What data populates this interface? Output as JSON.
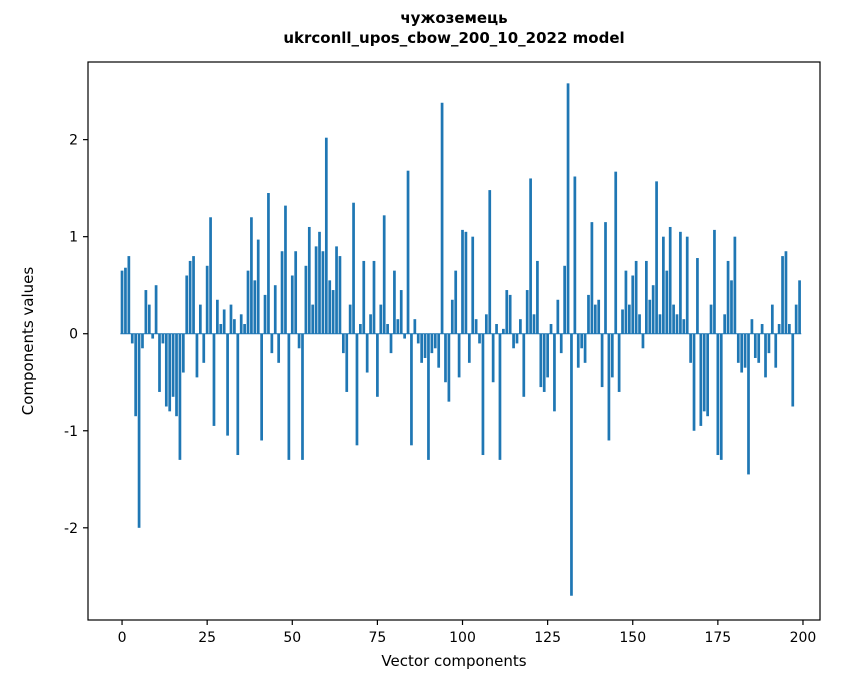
{
  "chart_data": {
    "type": "bar",
    "title": "чужоземець",
    "subtitle": "ukrconll_upos_cbow_200_10_2022 model",
    "xlabel": "Vector components",
    "ylabel": "Components values",
    "bar_color": "#1f77b4",
    "axis_color": "#000000",
    "xlim": [
      -10,
      205
    ],
    "ylim": [
      -2.95,
      2.8
    ],
    "xticks": [
      0,
      25,
      50,
      75,
      100,
      125,
      150,
      175,
      200
    ],
    "yticks": [
      -2,
      -1,
      0,
      1,
      2
    ],
    "bar_width": 0.8,
    "values": [
      0.65,
      0.68,
      0.8,
      -0.1,
      -0.85,
      -2.0,
      -0.15,
      0.45,
      0.3,
      -0.05,
      0.5,
      -0.6,
      -0.1,
      -0.75,
      -0.8,
      -0.65,
      -0.85,
      -1.3,
      -0.4,
      0.6,
      0.75,
      0.8,
      -0.45,
      0.3,
      -0.3,
      0.7,
      1.2,
      -0.95,
      0.35,
      0.1,
      0.25,
      -1.05,
      0.3,
      0.15,
      -1.25,
      0.2,
      0.1,
      0.65,
      1.2,
      0.55,
      0.97,
      -1.1,
      0.4,
      1.45,
      -0.2,
      0.5,
      -0.3,
      0.85,
      1.32,
      -1.3,
      0.6,
      0.85,
      -0.15,
      -1.3,
      0.7,
      1.1,
      0.3,
      0.9,
      1.05,
      0.85,
      2.02,
      0.55,
      0.45,
      0.9,
      0.8,
      -0.2,
      -0.6,
      0.3,
      1.35,
      -1.15,
      0.1,
      0.75,
      -0.4,
      0.2,
      0.75,
      -0.65,
      0.3,
      1.22,
      0.1,
      -0.2,
      0.65,
      0.15,
      0.45,
      -0.05,
      1.68,
      -1.15,
      0.15,
      -0.1,
      -0.3,
      -0.25,
      -1.3,
      -0.2,
      -0.15,
      -0.35,
      2.38,
      -0.5,
      -0.7,
      0.35,
      0.65,
      -0.45,
      1.07,
      1.05,
      -0.3,
      1.0,
      0.15,
      -0.1,
      -1.25,
      0.2,
      1.48,
      -0.5,
      0.1,
      -1.3,
      0.05,
      0.45,
      0.4,
      -0.15,
      -0.1,
      0.15,
      -0.65,
      0.45,
      1.6,
      0.2,
      0.75,
      -0.55,
      -0.6,
      -0.45,
      0.1,
      -0.8,
      0.35,
      -0.2,
      0.7,
      2.58,
      -2.7,
      1.62,
      -0.35,
      -0.15,
      -0.3,
      0.4,
      1.15,
      0.3,
      0.35,
      -0.55,
      1.15,
      -1.1,
      -0.45,
      1.67,
      -0.6,
      0.25,
      0.65,
      0.3,
      0.6,
      0.75,
      0.2,
      -0.15,
      0.75,
      0.35,
      0.5,
      1.57,
      0.2,
      1.0,
      0.65,
      1.1,
      0.3,
      0.2,
      1.05,
      0.15,
      1.0,
      -0.3,
      -1.0,
      0.78,
      -0.95,
      -0.8,
      -0.85,
      0.3,
      1.07,
      -1.25,
      -1.3,
      0.2,
      0.75,
      0.55,
      1.0,
      -0.3,
      -0.4,
      -0.35,
      -1.45,
      0.15,
      -0.25,
      -0.3,
      0.1,
      -0.45,
      -0.2,
      0.3,
      -0.35,
      0.1,
      0.8,
      0.85,
      0.1,
      -0.75,
      0.3,
      0.55
    ]
  }
}
